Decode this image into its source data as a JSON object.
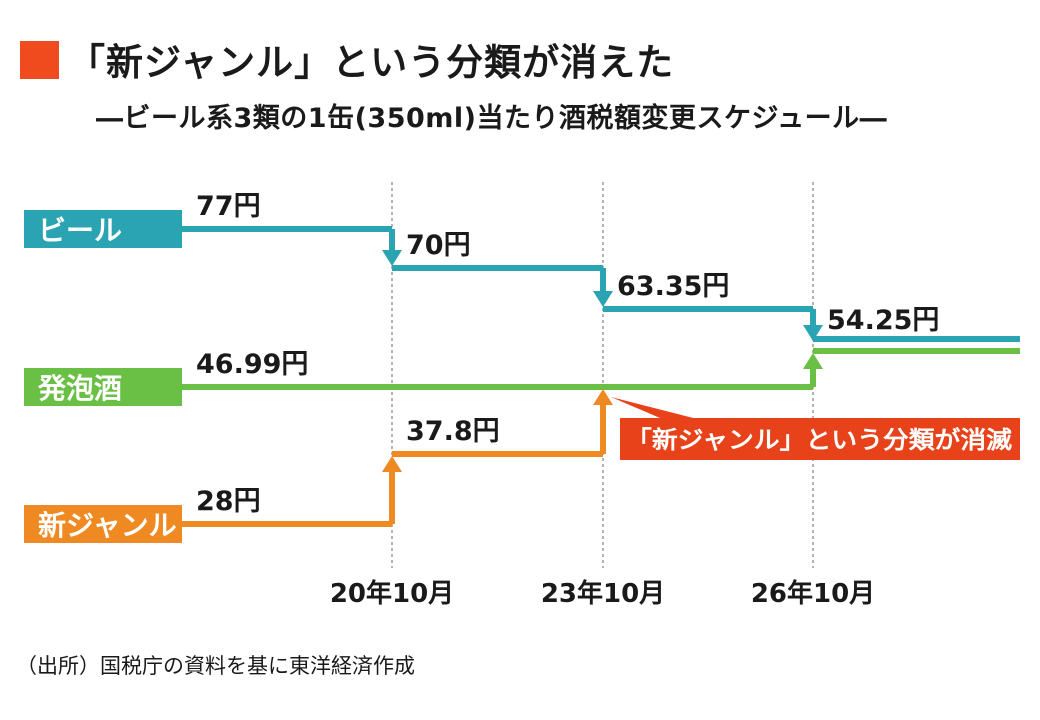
{
  "header": {
    "title": "「新ジャンル」という分類が消えた",
    "subtitle": "―ビール系3類の1缶(350ml)当たり酒税額変更スケジュール―",
    "accent_color": "#f04b1e"
  },
  "source": "（出所）国税庁の資料を基に東洋経済作成",
  "chart_data": {
    "type": "line",
    "step": true,
    "title": "「新ジャンル」という分類が消えた",
    "subtitle": "―ビール系3類の1缶(350ml)当たり酒税額変更スケジュール―",
    "xlabel": "",
    "ylabel": "",
    "grid": "vertical dashed lines at change dates",
    "x": [
      "20年10月",
      "23年10月",
      "26年10月"
    ],
    "series": [
      {
        "name": "ビール",
        "color": "#2aa3b2",
        "points": [
          {
            "period": "start",
            "value": 77,
            "label": "77円"
          },
          {
            "period": "20年10月",
            "value": 70,
            "label": "70円"
          },
          {
            "period": "23年10月",
            "value": 63.35,
            "label": "63.35円"
          },
          {
            "period": "26年10月",
            "value": 54.25,
            "label": "54.25円"
          }
        ]
      },
      {
        "name": "発泡酒",
        "color": "#6abf45",
        "points": [
          {
            "period": "start",
            "value": 46.99,
            "label": "46.99円"
          },
          {
            "period": "26年10月",
            "value": 54.25,
            "label": ""
          }
        ]
      },
      {
        "name": "新ジャンル",
        "color": "#ef8a23",
        "points": [
          {
            "period": "start",
            "value": 28,
            "label": "28円"
          },
          {
            "period": "20年10月",
            "value": 37.8,
            "label": "37.8円"
          },
          {
            "period": "23年10月",
            "value": 46.99,
            "label": ""
          }
        ]
      }
    ],
    "annotations": [
      {
        "text": "「新ジャンル」という分類が消滅",
        "period": "23年10月",
        "color": "#e8421a"
      }
    ]
  }
}
